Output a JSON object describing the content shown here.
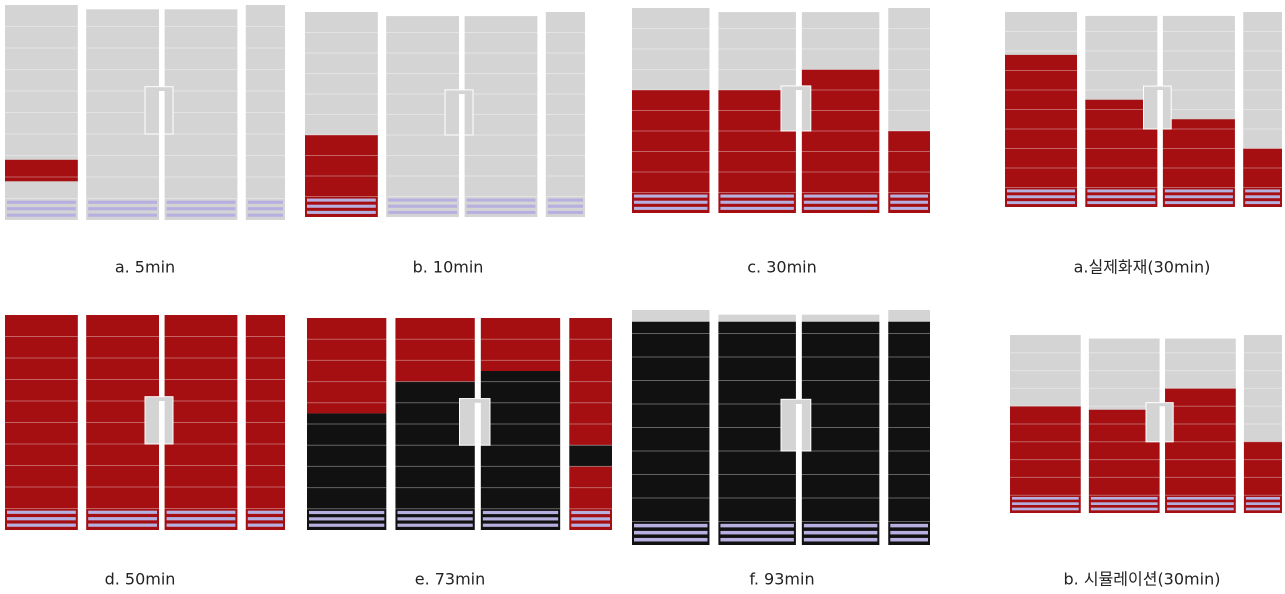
{
  "panels": [
    {
      "caption": "a.  5min"
    },
    {
      "caption": "b.  10min"
    },
    {
      "caption": "c.  30min"
    },
    {
      "caption": "a.실제화재(30min)"
    },
    {
      "caption": "d.  50min"
    },
    {
      "caption": "e.  73min"
    },
    {
      "caption": "f.  93min"
    },
    {
      "caption": "b.  시뮬레이션(30min)"
    }
  ]
}
